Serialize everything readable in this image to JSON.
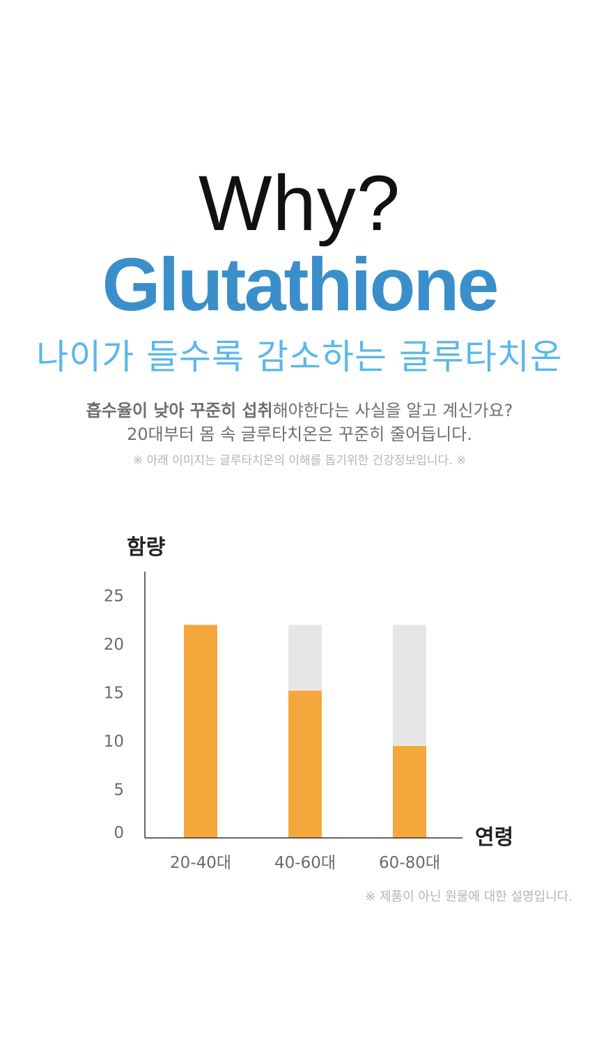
{
  "headline": {
    "why": "Why?",
    "product": "Glutathione"
  },
  "subtitle": "나이가 들수록 감소하는 글루타치온",
  "description": {
    "line1_bold": "흡수율이 낮아 꾸준히 섭취",
    "line1_rest": "해야한다는 사실을 알고 계신가요?",
    "line2": "20대부터 몸 속 글루타치온은 꾸준히 줄어듭니다."
  },
  "note_top": "※ 아래 이미지는 글루타치온의 이해를 돕기위한 건강정보입니다. ※",
  "note_bottom": "※ 제품이 아닌 원물에 대한 설명입니다.",
  "colors": {
    "accent_blue": "#3a8fca",
    "light_blue": "#5ab8ea",
    "bar_orange": "#f4a83c",
    "bar_gray": "#e6e6e6"
  },
  "chart_data": {
    "type": "bar",
    "ylabel": "함량",
    "xlabel": "연령",
    "categories": [
      "20-40대",
      "40-60대",
      "60-80대"
    ],
    "yticks": [
      0,
      5,
      10,
      15,
      20,
      25
    ],
    "ylim": [
      0,
      27.5
    ],
    "background_value": 22,
    "values": [
      22,
      15.2,
      9.5
    ],
    "grid": false,
    "legend": "none"
  }
}
